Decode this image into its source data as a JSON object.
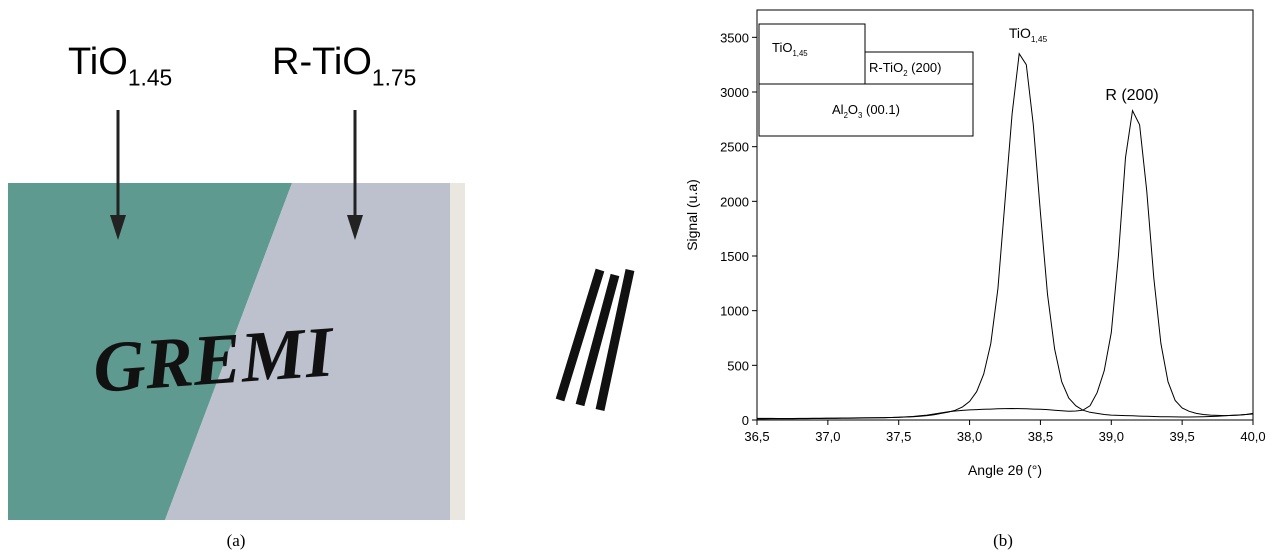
{
  "panel_a": {
    "labels": [
      [
        "TiO",
        "1.45"
      ],
      [
        "R-TiO",
        "1.75"
      ]
    ],
    "writing": "GREMI",
    "caption": "(a)"
  },
  "panel_b": {
    "caption": "(b)"
  },
  "chart_data": {
    "type": "line",
    "xlabel": "Angle 2θ (°)",
    "ylabel": "Signal (u.a)",
    "xlim": [
      36.5,
      40.0
    ],
    "ylim": [
      0,
      3750
    ],
    "xticks": [
      {
        "value": 36.5,
        "label": "36,5"
      },
      {
        "value": 37.0,
        "label": "37,0"
      },
      {
        "value": 37.5,
        "label": "37,5"
      },
      {
        "value": 38.0,
        "label": "38,0"
      },
      {
        "value": 38.5,
        "label": "38,5"
      },
      {
        "value": 39.0,
        "label": "39,0"
      },
      {
        "value": 39.5,
        "label": "39,5"
      },
      {
        "value": 40.0,
        "label": "40,0"
      }
    ],
    "yticks": [
      0,
      500,
      1000,
      1500,
      2000,
      2500,
      3000,
      3500
    ],
    "annotations": [
      [
        "TiO",
        "1,45"
      ],
      [
        "R (200)"
      ]
    ],
    "inset": [
      [
        "TiO",
        "1,45"
      ],
      [
        "R-TiO",
        "2",
        " (200)"
      ],
      [
        "Al",
        "2",
        "O",
        "3",
        " (00.1)"
      ]
    ],
    "x": [
      36.5,
      36.55,
      36.6,
      36.65,
      36.7,
      36.75,
      36.8,
      36.85,
      36.9,
      36.95,
      37.0,
      37.05,
      37.1,
      37.15,
      37.2,
      37.25,
      37.3,
      37.35,
      37.4,
      37.45,
      37.5,
      37.55,
      37.6,
      37.65,
      37.7,
      37.75,
      37.8,
      37.85,
      37.9,
      37.95,
      38.0,
      38.05,
      38.1,
      38.15,
      38.2,
      38.25,
      38.3,
      38.35,
      38.4,
      38.45,
      38.5,
      38.55,
      38.6,
      38.65,
      38.7,
      38.75,
      38.8,
      38.85,
      38.9,
      38.95,
      39.0,
      39.05,
      39.1,
      39.15,
      39.2,
      39.25,
      39.3,
      39.35,
      39.4,
      39.45,
      39.5,
      39.55,
      39.6,
      39.65,
      39.7,
      39.75,
      39.8,
      39.85,
      39.9,
      39.95,
      40.0
    ],
    "series": [
      {
        "color": "#000000",
        "values": [
          10,
          10,
          11,
          11,
          12,
          12,
          13,
          13,
          14,
          14,
          15,
          15,
          16,
          16,
          17,
          18,
          19,
          20,
          21,
          23,
          25,
          27,
          30,
          34,
          40,
          48,
          60,
          72,
          90,
          120,
          170,
          260,
          420,
          700,
          1200,
          2000,
          2800,
          3350,
          3250,
          2700,
          1900,
          1150,
          650,
          350,
          200,
          130,
          90,
          70,
          60,
          50,
          45,
          42,
          40,
          38,
          36,
          34,
          32,
          30,
          29,
          28,
          27,
          27,
          28,
          30,
          32,
          35,
          38,
          42,
          46,
          50,
          55
        ]
      },
      {
        "color": "#000000",
        "values": [
          15,
          15,
          15,
          14,
          14,
          14,
          15,
          15,
          16,
          16,
          17,
          17,
          18,
          18,
          19,
          20,
          20,
          21,
          22,
          23,
          25,
          28,
          32,
          38,
          45,
          55,
          65,
          75,
          82,
          88,
          92,
          95,
          98,
          100,
          102,
          104,
          105,
          104,
          102,
          100,
          98,
          95,
          90,
          85,
          80,
          82,
          90,
          130,
          250,
          450,
          800,
          1500,
          2400,
          2830,
          2700,
          2100,
          1300,
          700,
          350,
          180,
          110,
          80,
          60,
          50,
          45,
          42,
          40,
          42,
          45,
          50,
          60
        ]
      }
    ]
  }
}
